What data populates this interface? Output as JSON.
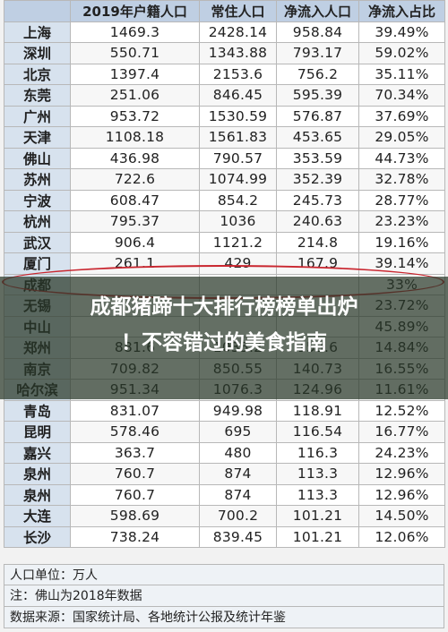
{
  "headers": [
    "",
    "2019年户籍人口",
    "常住人口",
    "净流入人口",
    "净流入占比"
  ],
  "rows": [
    [
      "上海",
      "1469.3",
      "2428.14",
      "958.84",
      "39.49%"
    ],
    [
      "深圳",
      "550.71",
      "1343.88",
      "793.17",
      "59.02%"
    ],
    [
      "北京",
      "1397.4",
      "2153.6",
      "756.2",
      "35.11%"
    ],
    [
      "东莞",
      "251.06",
      "846.45",
      "595.39",
      "70.34%"
    ],
    [
      "广州",
      "953.72",
      "1530.59",
      "576.87",
      "37.69%"
    ],
    [
      "天津",
      "1108.18",
      "1561.83",
      "453.65",
      "29.05%"
    ],
    [
      "佛山",
      "436.98",
      "790.57",
      "353.59",
      "44.73%"
    ],
    [
      "苏州",
      "722.6",
      "1074.99",
      "352.39",
      "32.78%"
    ],
    [
      "宁波",
      "608.47",
      "854.2",
      "245.73",
      "28.77%"
    ],
    [
      "杭州",
      "795.37",
      "1036",
      "240.63",
      "23.23%"
    ],
    [
      "武汉",
      "906.4",
      "1121.2",
      "214.8",
      "19.16%"
    ],
    [
      "厦门",
      "261.1",
      "429",
      "167.9",
      "39.14%"
    ],
    [
      "成都",
      "",
      "",
      "",
      "33%"
    ],
    [
      "无锡",
      "",
      "",
      "",
      "23.72%"
    ],
    [
      "中山",
      "",
      "",
      "",
      "45.89%"
    ],
    [
      "郑州",
      "881.6",
      "1035.2",
      "153.6",
      "14.84%"
    ],
    [
      "南京",
      "709.82",
      "850.55",
      "140.73",
      "16.55%"
    ],
    [
      "哈尔滨",
      "951.34",
      "1076.3",
      "124.96",
      "11.61%"
    ],
    [
      "青岛",
      "831.07",
      "949.98",
      "118.91",
      "12.52%"
    ],
    [
      "昆明",
      "578.46",
      "695",
      "116.54",
      "16.77%"
    ],
    [
      "嘉兴",
      "363.7",
      "480",
      "116.3",
      "24.23%"
    ],
    [
      "泉州",
      "760.7",
      "874",
      "113.3",
      "12.96%"
    ],
    [
      "泉州",
      "760.7",
      "874",
      "113.3",
      "12.96%"
    ],
    [
      "大连",
      "598.69",
      "700.2",
      "101.21",
      "14.50%"
    ],
    [
      "长沙",
      "738.24",
      "839.45",
      "101.21",
      "12.06%"
    ]
  ],
  "notes": {
    "unit": "人口单位：万人",
    "footnote": "注：佛山为2018年数据",
    "source": "数据来源：国家统计局、各地统计公报及统计年鉴"
  },
  "overlay": {
    "line1": "成都猪蹄十大排行榜榜单出炉",
    "line2": "！不容错过的美食指南"
  }
}
